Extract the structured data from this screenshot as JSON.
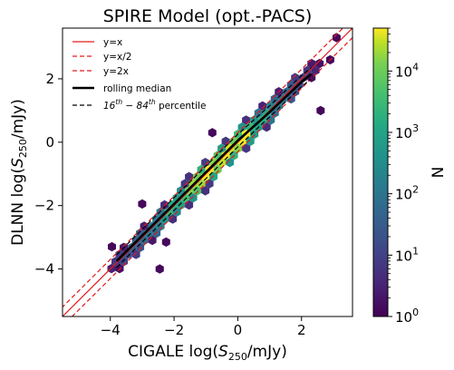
{
  "chart_data": {
    "type": "heatmap",
    "subtype": "hexbin",
    "title": "SPIRE Model (opt.-PACS)",
    "xlabel_main": "CIGALE log(",
    "xlabel_sym": "S",
    "xlabel_sub": "250",
    "xlabel_end": "/mJy)",
    "ylabel_main": "DLNN log(",
    "ylabel_sym": "S",
    "ylabel_sub": "250",
    "ylabel_end": "/mJy)",
    "xlim": [
      -5.5,
      3.6
    ],
    "ylim": [
      -5.5,
      3.6
    ],
    "xticks": [
      -4,
      -2,
      0,
      2
    ],
    "yticks": [
      -4,
      -2,
      0,
      2
    ],
    "x_tick_labels": [
      "−4",
      "−2",
      "0",
      "2"
    ],
    "y_tick_labels": [
      "−4",
      "−2",
      "0",
      "2"
    ],
    "legend_position": "top-left",
    "legend": [
      {
        "label": "y=x",
        "color": "#e41a1c",
        "style": "solid"
      },
      {
        "label": "y=x/2",
        "color": "#e41a1c",
        "style": "dashed"
      },
      {
        "label": "y=2x",
        "color": "#e41a1c",
        "style": "dashed"
      },
      {
        "label": "rolling median",
        "color": "#000000",
        "style": "solid-thick"
      },
      {
        "label_pre": "16",
        "label_sup1": "th",
        "label_mid": " − 84",
        "label_sup2": "th",
        "label_post": " percentile",
        "color": "#000000",
        "style": "dashed"
      }
    ],
    "lines": {
      "identity": {
        "slope": 1,
        "offset": 0
      },
      "half_line": {
        "offset": -0.301
      },
      "double_line": {
        "offset": 0.301
      }
    },
    "rolling_median": {
      "x": [
        -3.8,
        -3.0,
        -2.0,
        -1.0,
        0.0,
        1.0,
        2.0,
        2.3
      ],
      "y": [
        -3.75,
        -2.95,
        -1.95,
        -0.95,
        0.05,
        0.95,
        1.9,
        2.15
      ]
    },
    "percentile_16": {
      "x": [
        -3.8,
        -3.0,
        -2.0,
        -1.0,
        0.0,
        1.0,
        2.0,
        2.3
      ],
      "y": [
        -3.95,
        -3.15,
        -2.15,
        -1.15,
        -0.15,
        0.8,
        1.75,
        2.0
      ]
    },
    "percentile_84": {
      "x": [
        -3.8,
        -3.0,
        -2.0,
        -1.0,
        0.0,
        1.0,
        2.0,
        2.3
      ],
      "y": [
        -3.55,
        -2.75,
        -1.75,
        -0.75,
        0.25,
        1.15,
        2.1,
        2.35
      ]
    },
    "density_peak_range": [
      -1.5,
      0.3
    ],
    "core_x_range": [
      -4.0,
      2.6
    ],
    "outliers": [
      {
        "x": -2.25,
        "y": -3.15
      },
      {
        "x": -2.45,
        "y": -4.0
      },
      {
        "x": -3.0,
        "y": -1.95
      },
      {
        "x": -0.8,
        "y": 0.3
      },
      {
        "x": 2.9,
        "y": 2.6
      },
      {
        "x": 3.1,
        "y": 3.3
      },
      {
        "x": 2.6,
        "y": 1.0
      },
      {
        "x": -3.95,
        "y": -3.3
      }
    ],
    "colorbar": {
      "label": "N",
      "scale": "log",
      "colormap": "viridis",
      "range": [
        1,
        50000
      ],
      "ticks": [
        {
          "base": "10",
          "exp": "0",
          "value": 1
        },
        {
          "base": "10",
          "exp": "1",
          "value": 10
        },
        {
          "base": "10",
          "exp": "2",
          "value": 100
        },
        {
          "base": "10",
          "exp": "3",
          "value": 1000
        },
        {
          "base": "10",
          "exp": "4",
          "value": 10000
        }
      ]
    }
  }
}
